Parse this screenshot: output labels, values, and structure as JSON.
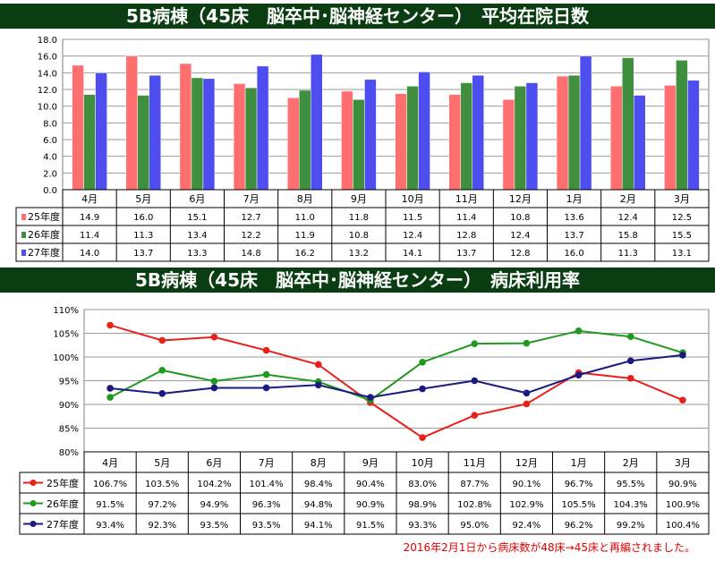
{
  "chart_data": [
    {
      "type": "bar",
      "title": "5B病棟（45床　脳卒中･脳神経センター）　平均在院日数",
      "categories": [
        "4月",
        "5月",
        "6月",
        "7月",
        "8月",
        "9月",
        "10月",
        "11月",
        "12月",
        "1月",
        "2月",
        "3月"
      ],
      "ylim": [
        0,
        18
      ],
      "yticks": [
        "0.0",
        "2.0",
        "4.0",
        "6.0",
        "8.0",
        "10.0",
        "12.0",
        "14.0",
        "16.0",
        "18.0"
      ],
      "grid": true,
      "series": [
        {
          "name": "25年度",
          "color": "#ff6f6f",
          "values": [
            14.9,
            16.0,
            15.1,
            12.7,
            11.0,
            11.8,
            11.5,
            11.4,
            10.8,
            13.6,
            12.4,
            12.5
          ],
          "labels": [
            "14.9",
            "16.0",
            "15.1",
            "12.7",
            "11.0",
            "11.8",
            "11.5",
            "11.4",
            "10.8",
            "13.6",
            "12.4",
            "12.5"
          ]
        },
        {
          "name": "26年度",
          "color": "#3f8f3f",
          "values": [
            11.4,
            11.3,
            13.4,
            12.2,
            11.9,
            10.8,
            12.4,
            12.8,
            12.4,
            13.7,
            15.8,
            15.5
          ],
          "labels": [
            "11.4",
            "11.3",
            "13.4",
            "12.2",
            "11.9",
            "10.8",
            "12.4",
            "12.8",
            "12.4",
            "13.7",
            "15.8",
            "15.5"
          ]
        },
        {
          "name": "27年度",
          "color": "#4d4df0",
          "values": [
            14.0,
            13.7,
            13.3,
            14.8,
            16.2,
            13.2,
            14.1,
            13.7,
            12.8,
            16.0,
            11.3,
            13.1
          ],
          "labels": [
            "14.0",
            "13.7",
            "13.3",
            "14.8",
            "16.2",
            "13.2",
            "14.1",
            "13.7",
            "12.8",
            "16.0",
            "11.3",
            "13.1"
          ]
        }
      ]
    },
    {
      "type": "line",
      "title": "5B病棟（45床　脳卒中･脳神経センター）　病床利用率",
      "categories": [
        "4月",
        "5月",
        "6月",
        "7月",
        "8月",
        "9月",
        "10月",
        "11月",
        "12月",
        "1月",
        "2月",
        "3月"
      ],
      "ylim": [
        80,
        110
      ],
      "yticks": [
        "80%",
        "85%",
        "90%",
        "95%",
        "100%",
        "105%",
        "110%"
      ],
      "grid": true,
      "series": [
        {
          "name": "25年度",
          "color": "#e8201a",
          "values": [
            106.7,
            103.5,
            104.2,
            101.4,
            98.4,
            90.4,
            83.0,
            87.7,
            90.1,
            96.7,
            95.5,
            90.9
          ],
          "labels": [
            "106.7%",
            "103.5%",
            "104.2%",
            "101.4%",
            "98.4%",
            "90.4%",
            "83.0%",
            "87.7%",
            "90.1%",
            "96.7%",
            "95.5%",
            "90.9%"
          ]
        },
        {
          "name": "26年度",
          "color": "#1f9a1f",
          "values": [
            91.5,
            97.2,
            94.9,
            96.3,
            94.8,
            90.9,
            98.9,
            102.8,
            102.9,
            105.5,
            104.3,
            100.9
          ],
          "labels": [
            "91.5%",
            "97.2%",
            "94.9%",
            "96.3%",
            "94.8%",
            "90.9%",
            "98.9%",
            "102.8%",
            "102.9%",
            "105.5%",
            "104.3%",
            "100.9%"
          ]
        },
        {
          "name": "27年度",
          "color": "#1a1a80",
          "values": [
            93.4,
            92.3,
            93.5,
            93.5,
            94.1,
            91.5,
            93.3,
            95.0,
            92.4,
            96.2,
            99.2,
            100.4
          ],
          "labels": [
            "93.4%",
            "92.3%",
            "93.5%",
            "93.5%",
            "94.1%",
            "91.5%",
            "93.3%",
            "95.0%",
            "92.4%",
            "96.2%",
            "99.2%",
            "100.4%"
          ]
        }
      ]
    }
  ],
  "footnote": "2016年2月1日から病床数が48床→45床と再編されました。"
}
